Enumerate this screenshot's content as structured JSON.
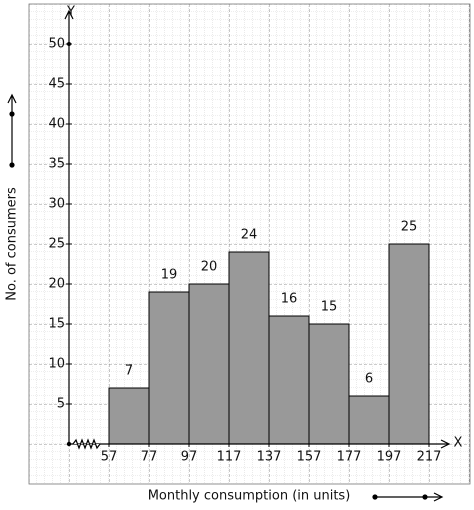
{
  "chart_data": {
    "type": "histogram",
    "x_label": "Monthly consumption (in units)",
    "y_label": "No. of consumers",
    "x_axis_name": "X",
    "y_axis_name": "Y",
    "bins": [
      57,
      77,
      97,
      117,
      137,
      157,
      177,
      197,
      217
    ],
    "values": [
      7,
      19,
      20,
      24,
      16,
      15,
      6,
      25
    ],
    "color": "#999999",
    "xlim": [
      37,
      227
    ],
    "xticks": [
      57,
      77,
      97,
      117,
      137,
      157,
      177,
      197,
      217
    ],
    "ylim": [
      0,
      54
    ],
    "yticks": [
      5,
      10,
      15,
      20,
      25,
      30,
      35,
      40,
      45,
      50
    ]
  }
}
